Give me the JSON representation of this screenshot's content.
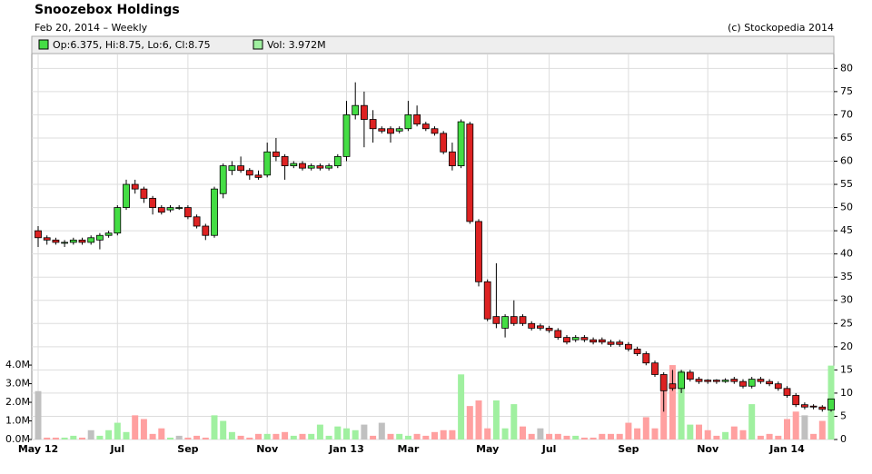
{
  "chart_data": {
    "type": "candlestick",
    "title": "Snoozebox Holdings",
    "subtitle": "Feb 20, 2014 – Weekly",
    "credit": "(c) Stockopedia 2014",
    "legend": {
      "ohlc": "Op:6.375, Hi:8.75, Lo:6, Cl:8.75",
      "volume": "Vol: 3.972M"
    },
    "categories": [
      "May 12",
      null,
      null,
      null,
      null,
      null,
      null,
      null,
      null,
      "Jul",
      null,
      null,
      null,
      null,
      null,
      null,
      null,
      "Sep",
      null,
      null,
      null,
      null,
      null,
      null,
      null,
      null,
      "Nov",
      null,
      null,
      null,
      null,
      null,
      null,
      null,
      null,
      "Jan 13",
      null,
      null,
      null,
      null,
      null,
      null,
      "Mar",
      null,
      null,
      null,
      null,
      null,
      null,
      null,
      null,
      "May",
      null,
      null,
      null,
      null,
      null,
      null,
      "Jul",
      null,
      null,
      null,
      null,
      null,
      null,
      null,
      null,
      "Sep",
      null,
      null,
      null,
      null,
      null,
      null,
      null,
      null,
      "Nov",
      null,
      null,
      null,
      null,
      null,
      null,
      null,
      null,
      "Jan 14",
      null,
      null,
      null,
      null,
      null
    ],
    "open": [
      45,
      43.5,
      43,
      42.5,
      42.5,
      43,
      42.5,
      43,
      44,
      44.5,
      50,
      55,
      54,
      52,
      50,
      49.5,
      50,
      50,
      48,
      46,
      44,
      53,
      58,
      59,
      58,
      57,
      57,
      62,
      61,
      59,
      59.5,
      58.5,
      59,
      58.5,
      59,
      61,
      70,
      72,
      69,
      67,
      67,
      66.5,
      67,
      70,
      68,
      67,
      66,
      62,
      59,
      68,
      47,
      34,
      26.5,
      24,
      26.5,
      26.5,
      25,
      24.5,
      24,
      23.5,
      22,
      21.5,
      22,
      21.5,
      21.5,
      21,
      21,
      20.5,
      19.5,
      18.5,
      16.5,
      14,
      12,
      11,
      14.5,
      13,
      12.8,
      12.8,
      12.5,
      13,
      12.5,
      11.5,
      13,
      12.5,
      12,
      11,
      9.5,
      7.5,
      7.2,
      7,
      6.375
    ],
    "high": [
      46,
      44,
      43.5,
      43,
      43.5,
      43.5,
      44,
      44.5,
      45,
      50.5,
      56,
      56,
      54.5,
      52.5,
      50.5,
      50.5,
      50.5,
      50.5,
      48.5,
      46.5,
      54.5,
      59.5,
      60,
      61,
      58.5,
      58,
      64,
      65,
      61.5,
      60,
      60,
      59.5,
      59.5,
      59.5,
      61.5,
      73,
      77,
      75,
      71,
      67.5,
      67.5,
      67.5,
      73,
      72,
      68.5,
      67.5,
      66.5,
      64,
      69,
      68.5,
      47.5,
      34.5,
      38,
      27,
      30,
      27,
      25.5,
      25,
      24.5,
      24,
      22.5,
      22.5,
      22.5,
      22,
      22,
      21.5,
      21.5,
      21,
      20,
      19,
      17,
      14.5,
      15,
      15,
      15,
      13.5,
      13,
      13,
      13.2,
      13.5,
      13,
      13.5,
      13.5,
      13,
      12.5,
      11.5,
      10,
      8,
      7.6,
      7.4,
      8.75
    ],
    "low": [
      41.5,
      42,
      42,
      41.5,
      42,
      42,
      42,
      41,
      43.5,
      44,
      49.5,
      53,
      51,
      48.5,
      48.5,
      49,
      49.5,
      47.5,
      45.5,
      43,
      43.5,
      52,
      57,
      57.5,
      56,
      56,
      56.5,
      60,
      56,
      58.5,
      58,
      58,
      58,
      58,
      58.5,
      60,
      69,
      63,
      64,
      66,
      64,
      66,
      66.5,
      67.5,
      66.5,
      65.5,
      61.5,
      58,
      58.5,
      46.5,
      33,
      25.5,
      24,
      22,
      24.5,
      24.5,
      23.5,
      23.5,
      23,
      21.5,
      20.5,
      21,
      21,
      20.5,
      20.5,
      20,
      20,
      19,
      18,
      16,
      13.5,
      6,
      10.5,
      10,
      12.5,
      12,
      12,
      12,
      12.2,
      12,
      11,
      11,
      12,
      11.5,
      10.5,
      9,
      7,
      6.5,
      6.5,
      6,
      6
    ],
    "close": [
      43.5,
      43,
      42.5,
      42.5,
      43,
      42.5,
      43.5,
      44,
      44.5,
      50,
      55,
      54,
      52,
      50,
      49,
      50,
      50,
      48,
      46,
      44,
      54,
      59,
      59,
      58,
      57,
      56.5,
      62,
      61,
      59,
      59.5,
      58.5,
      59,
      58.5,
      59,
      61,
      70,
      72,
      69,
      67,
      66.5,
      66,
      67,
      70,
      68,
      67,
      66,
      62,
      59,
      68.5,
      47,
      34,
      26,
      25,
      26.5,
      25,
      25,
      24,
      24,
      23.5,
      22,
      21,
      22,
      21.5,
      21,
      21,
      20.5,
      20.5,
      19.5,
      18.5,
      16.5,
      14,
      10.5,
      11,
      14.5,
      13,
      12.5,
      12.5,
      12.5,
      12.8,
      12.5,
      11.5,
      13,
      12.5,
      12,
      11,
      9.5,
      7.5,
      7,
      7,
      6.5,
      8.75
    ],
    "volume": [
      2600000.0,
      100000.0,
      100000.0,
      100000.0,
      200000.0,
      100000.0,
      500000.0,
      200000.0,
      500000.0,
      900000.0,
      400000.0,
      1300000.0,
      1100000.0,
      300000.0,
      600000.0,
      100000.0,
      200000.0,
      100000.0,
      200000.0,
      100000.0,
      1300000.0,
      1000000.0,
      400000.0,
      200000.0,
      100000.0,
      300000.0,
      300000.0,
      300000.0,
      400000.0,
      200000.0,
      300000.0,
      300000.0,
      800000.0,
      200000.0,
      700000.0,
      600000.0,
      500000.0,
      800000.0,
      200000.0,
      900000.0,
      300000.0,
      300000.0,
      200000.0,
      300000.0,
      200000.0,
      400000.0,
      500000.0,
      500000.0,
      3500000.0,
      1800000.0,
      2100000.0,
      600000.0,
      2100000.0,
      600000.0,
      1900000.0,
      700000.0,
      300000.0,
      600000.0,
      300000.0,
      300000.0,
      200000.0,
      200000.0,
      100000.0,
      100000.0,
      300000.0,
      300000.0,
      300000.0,
      900000.0,
      600000.0,
      1200000.0,
      600000.0,
      2600000.0,
      4000000.0,
      3700000.0,
      800000.0,
      800000.0,
      500000.0,
      200000.0,
      400000.0,
      700000.0,
      500000.0,
      1900000.0,
      200000.0,
      300000.0,
      200000.0,
      1100000.0,
      1500000.0,
      1300000.0,
      300000.0,
      1000000.0,
      3972000.0
    ],
    "volume_colors": [
      "#c0c0c0",
      "#ffa0a0",
      "#ffa0a0",
      "#a0f0a0",
      "#a0f0a0",
      "#ffa0a0",
      "#c0c0c0",
      "#a0f0a0",
      "#a0f0a0",
      "#a0f0a0",
      "#a0f0a0",
      "#ffa0a0",
      "#ffa0a0",
      "#ffa0a0",
      "#ffa0a0",
      "#a0f0a0",
      "#c0c0c0",
      "#ffa0a0",
      "#ffa0a0",
      "#ffa0a0",
      "#a0f0a0",
      "#a0f0a0",
      "#a0f0a0",
      "#ffa0a0",
      "#ffa0a0",
      "#ffa0a0",
      "#a0f0a0",
      "#ffa0a0",
      "#ffa0a0",
      "#a0f0a0",
      "#ffa0a0",
      "#a0f0a0",
      "#a0f0a0",
      "#a0f0a0",
      "#a0f0a0",
      "#a0f0a0",
      "#a0f0a0",
      "#c0c0c0",
      "#ffa0a0",
      "#c0c0c0",
      "#ffa0a0",
      "#a0f0a0",
      "#a0f0a0",
      "#ffa0a0",
      "#ffa0a0",
      "#ffa0a0",
      "#ffa0a0",
      "#ffa0a0",
      "#a0f0a0",
      "#ffa0a0",
      "#ffa0a0",
      "#ffa0a0",
      "#a0f0a0",
      "#a0f0a0",
      "#a0f0a0",
      "#ffa0a0",
      "#ffa0a0",
      "#c0c0c0",
      "#ffa0a0",
      "#ffa0a0",
      "#ffa0a0",
      "#a0f0a0",
      "#ffa0a0",
      "#ffa0a0",
      "#ffa0a0",
      "#ffa0a0",
      "#ffa0a0",
      "#ffa0a0",
      "#ffa0a0",
      "#ffa0a0",
      "#ffa0a0",
      "#ffa0a0",
      "#ffa0a0",
      "#a0f0a0",
      "#a0f0a0",
      "#ffa0a0",
      "#ffa0a0",
      "#ffa0a0",
      "#a0f0a0",
      "#ffa0a0",
      "#ffa0a0",
      "#a0f0a0",
      "#ffa0a0",
      "#ffa0a0",
      "#ffa0a0",
      "#ffa0a0",
      "#ffa0a0",
      "#c0c0c0",
      "#ffa0a0",
      "#ffa0a0",
      "#a0f0a0"
    ],
    "up_color": "#44dd44",
    "down_color": "#dd2222",
    "ylim": [
      0,
      83
    ],
    "yticks": [
      0,
      5,
      10,
      15,
      20,
      25,
      30,
      35,
      40,
      45,
      50,
      55,
      60,
      65,
      70,
      75,
      80
    ],
    "y2lim": [
      0,
      20700000.0
    ],
    "y2ticks": [
      {
        "value": 0,
        "label": "0.0M"
      },
      {
        "value": 1000000.0,
        "label": "1.0M"
      },
      {
        "value": 2000000.0,
        "label": "2.0M"
      },
      {
        "value": 3000000.0,
        "label": "3.0M"
      },
      {
        "value": 4000000.0,
        "label": "4.0M"
      }
    ],
    "grid": true
  }
}
